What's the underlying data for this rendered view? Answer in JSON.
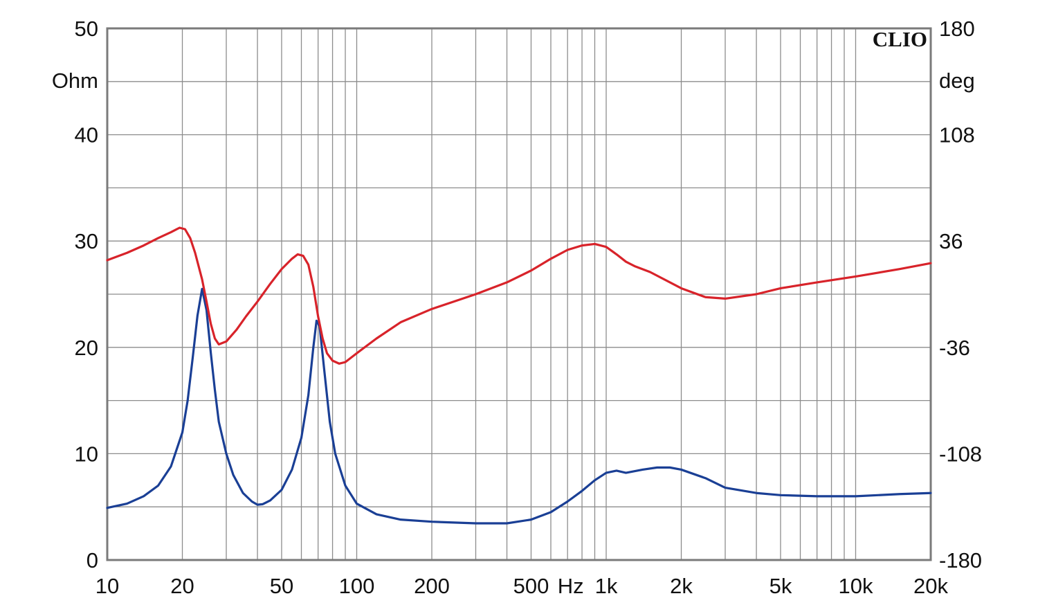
{
  "chart_data": {
    "type": "line",
    "brand": "CLIO",
    "x_scale": "log",
    "xlim": [
      10,
      20000
    ],
    "ylim_left": [
      0,
      50
    ],
    "ylim_right": [
      -180,
      180
    ],
    "left_unit": "Ohm",
    "right_unit": "deg",
    "x_unit": "Hz",
    "grid": true,
    "x_ticks": [
      {
        "value": 10,
        "label": "10"
      },
      {
        "value": 20,
        "label": "20"
      },
      {
        "value": 50,
        "label": "50"
      },
      {
        "value": 100,
        "label": "100"
      },
      {
        "value": 200,
        "label": "200"
      },
      {
        "value": 500,
        "label": "500"
      },
      {
        "value": 1000,
        "label": "1k"
      },
      {
        "value": 2000,
        "label": "2k"
      },
      {
        "value": 5000,
        "label": "5k"
      },
      {
        "value": 10000,
        "label": "10k"
      },
      {
        "value": 20000,
        "label": "20k"
      }
    ],
    "y_left_ticks": [
      {
        "value": 0,
        "label": "0"
      },
      {
        "value": 10,
        "label": "10"
      },
      {
        "value": 20,
        "label": "20"
      },
      {
        "value": 30,
        "label": "30"
      },
      {
        "value": 40,
        "label": "40"
      },
      {
        "value": 50,
        "label": "50"
      }
    ],
    "y_right_ticks": [
      {
        "value": -180,
        "label": "-180"
      },
      {
        "value": -108,
        "label": "-108"
      },
      {
        "value": -36,
        "label": "-36"
      },
      {
        "value": 36,
        "label": "36"
      },
      {
        "value": 108,
        "label": "108"
      },
      {
        "value": 180,
        "label": "180"
      }
    ],
    "series": [
      {
        "axis": "left",
        "color": "#1a3f95",
        "points": [
          [
            10,
            4.9
          ],
          [
            12,
            5.3
          ],
          [
            14,
            6.0
          ],
          [
            16,
            7.0
          ],
          [
            18,
            8.8
          ],
          [
            20,
            12.0
          ],
          [
            21,
            15.0
          ],
          [
            22,
            19.0
          ],
          [
            23,
            23.0
          ],
          [
            24,
            25.5
          ],
          [
            25,
            23.5
          ],
          [
            26,
            19.5
          ],
          [
            27,
            16.0
          ],
          [
            28,
            13.0
          ],
          [
            30,
            10.0
          ],
          [
            32,
            8.0
          ],
          [
            35,
            6.3
          ],
          [
            38,
            5.5
          ],
          [
            40,
            5.2
          ],
          [
            42,
            5.25
          ],
          [
            45,
            5.6
          ],
          [
            50,
            6.6
          ],
          [
            55,
            8.5
          ],
          [
            60,
            11.5
          ],
          [
            64,
            15.5
          ],
          [
            67,
            20.0
          ],
          [
            69,
            22.5
          ],
          [
            71,
            22.0
          ],
          [
            74,
            18.0
          ],
          [
            78,
            13.0
          ],
          [
            82,
            10.0
          ],
          [
            90,
            7.0
          ],
          [
            100,
            5.3
          ],
          [
            120,
            4.3
          ],
          [
            150,
            3.8
          ],
          [
            200,
            3.6
          ],
          [
            300,
            3.45
          ],
          [
            400,
            3.45
          ],
          [
            500,
            3.8
          ],
          [
            600,
            4.5
          ],
          [
            700,
            5.5
          ],
          [
            800,
            6.5
          ],
          [
            900,
            7.5
          ],
          [
            1000,
            8.2
          ],
          [
            1100,
            8.4
          ],
          [
            1200,
            8.2
          ],
          [
            1400,
            8.5
          ],
          [
            1600,
            8.7
          ],
          [
            1800,
            8.7
          ],
          [
            2000,
            8.5
          ],
          [
            2500,
            7.7
          ],
          [
            3000,
            6.8
          ],
          [
            4000,
            6.3
          ],
          [
            5000,
            6.1
          ],
          [
            7000,
            6.0
          ],
          [
            10000,
            6.0
          ],
          [
            15000,
            6.2
          ],
          [
            20000,
            6.3
          ]
        ]
      },
      {
        "axis": "right",
        "color": "#d8232a",
        "points": [
          [
            10,
            23
          ],
          [
            12,
            28
          ],
          [
            14,
            33
          ],
          [
            16,
            38
          ],
          [
            18,
            42
          ],
          [
            19.5,
            45
          ],
          [
            20.5,
            44
          ],
          [
            21.5,
            38
          ],
          [
            22.5,
            28
          ],
          [
            24,
            10
          ],
          [
            25,
            -5
          ],
          [
            26,
            -20
          ],
          [
            27,
            -30
          ],
          [
            28,
            -34
          ],
          [
            30,
            -32
          ],
          [
            33,
            -24
          ],
          [
            36,
            -15
          ],
          [
            40,
            -5
          ],
          [
            45,
            7
          ],
          [
            50,
            17
          ],
          [
            55,
            24
          ],
          [
            58,
            27
          ],
          [
            61,
            26
          ],
          [
            64,
            20
          ],
          [
            67,
            5
          ],
          [
            70,
            -15
          ],
          [
            73,
            -30
          ],
          [
            76,
            -40
          ],
          [
            80,
            -45
          ],
          [
            85,
            -47
          ],
          [
            90,
            -46
          ],
          [
            100,
            -40
          ],
          [
            120,
            -30
          ],
          [
            150,
            -19
          ],
          [
            200,
            -10
          ],
          [
            300,
            0
          ],
          [
            400,
            8
          ],
          [
            500,
            16
          ],
          [
            600,
            24
          ],
          [
            700,
            30
          ],
          [
            800,
            33
          ],
          [
            900,
            34
          ],
          [
            1000,
            32
          ],
          [
            1100,
            27
          ],
          [
            1200,
            22
          ],
          [
            1300,
            19
          ],
          [
            1500,
            15
          ],
          [
            2000,
            4
          ],
          [
            2500,
            -2
          ],
          [
            3000,
            -3
          ],
          [
            4000,
            0
          ],
          [
            5000,
            4
          ],
          [
            7000,
            8
          ],
          [
            10000,
            12
          ],
          [
            15000,
            17
          ],
          [
            20000,
            21
          ]
        ]
      }
    ]
  }
}
